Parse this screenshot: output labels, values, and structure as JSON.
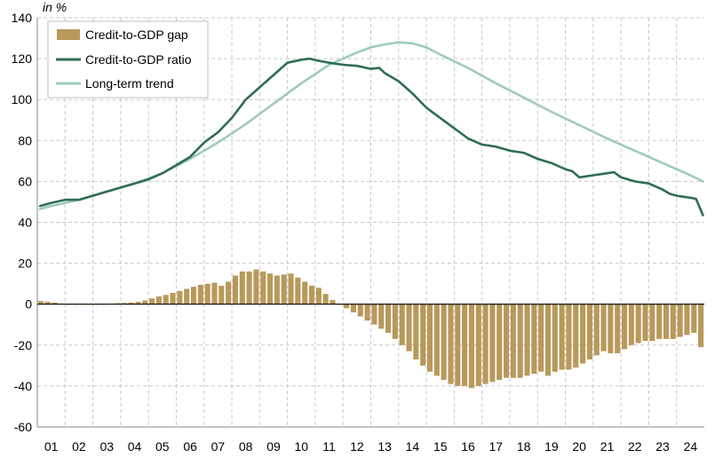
{
  "chart_data": {
    "type": "bar+line",
    "unit_label": "in %",
    "ylim": [
      -60,
      140
    ],
    "y_ticks": [
      140,
      120,
      100,
      80,
      60,
      40,
      20,
      0,
      -20,
      -40,
      -60
    ],
    "x_range": [
      0.5,
      24.5
    ],
    "x_tick_labels": [
      "01",
      "02",
      "03",
      "04",
      "05",
      "06",
      "07",
      "08",
      "09",
      "10",
      "11",
      "12",
      "13",
      "14",
      "15",
      "16",
      "17",
      "18",
      "19",
      "20",
      "21",
      "22",
      "23",
      "24"
    ],
    "grid": true,
    "legend_position": "top-left",
    "colors": {
      "gap": "#b8995a",
      "ratio": "#2e6e50",
      "trend": "#9ccbbb",
      "grid": "#c9c9c9",
      "axis": "#8a8a8a"
    },
    "series": [
      {
        "name": "Credit-to-GDP gap",
        "kind": "bar",
        "x": [
          0.625,
          0.875,
          1.125,
          1.375,
          1.625,
          1.875,
          2.125,
          2.375,
          2.625,
          2.875,
          3.125,
          3.375,
          3.625,
          3.875,
          4.125,
          4.375,
          4.625,
          4.875,
          5.125,
          5.375,
          5.625,
          5.875,
          6.125,
          6.375,
          6.625,
          6.875,
          7.125,
          7.375,
          7.625,
          7.875,
          8.125,
          8.375,
          8.625,
          8.875,
          9.125,
          9.375,
          9.625,
          9.875,
          10.125,
          10.375,
          10.625,
          10.875,
          11.125,
          11.375,
          11.625,
          11.875,
          12.125,
          12.375,
          12.625,
          12.875,
          13.125,
          13.375,
          13.625,
          13.875,
          14.125,
          14.375,
          14.625,
          14.875,
          15.125,
          15.375,
          15.625,
          15.875,
          16.125,
          16.375,
          16.625,
          16.875,
          17.125,
          17.375,
          17.625,
          17.875,
          18.125,
          18.375,
          18.625,
          18.875,
          19.125,
          19.375,
          19.625,
          19.875,
          20.125,
          20.375,
          20.625,
          20.875,
          21.125,
          21.375,
          21.625,
          21.875,
          22.125,
          22.375,
          22.625,
          22.875,
          23.125,
          23.375,
          23.625,
          23.875,
          24.125,
          24.375
        ],
        "values": [
          1.5,
          1.2,
          0.8,
          0.3,
          0,
          -0.2,
          -0.3,
          -0.3,
          -0.1,
          0,
          0.2,
          0.4,
          0.6,
          0.8,
          1.2,
          1.8,
          2.8,
          3.8,
          4.5,
          5.5,
          6.5,
          7.5,
          8.5,
          9.5,
          10,
          10.5,
          9,
          11,
          14,
          16,
          16,
          17,
          16,
          15,
          14,
          14.5,
          15,
          13,
          11,
          9,
          8,
          5,
          2,
          0,
          -2,
          -4,
          -6,
          -8,
          -10,
          -12,
          -14,
          -17,
          -20,
          -23,
          -27,
          -30,
          -33,
          -35,
          -37,
          -39,
          -40,
          -40,
          -41,
          -40,
          -39,
          -38,
          -37,
          -36,
          -36,
          -36,
          -35,
          -34,
          -33,
          -35,
          -33,
          -32,
          -32,
          -31,
          -29,
          -27,
          -25,
          -23,
          -24,
          -24,
          -22,
          -20,
          -19,
          -18,
          -18,
          -17,
          -17,
          -17,
          -16,
          -15,
          -14,
          -21
        ]
      },
      {
        "name": "Credit-to-GDP ratio",
        "kind": "line",
        "x": [
          0.6,
          1.0,
          1.5,
          2.0,
          2.5,
          3.0,
          3.5,
          4.0,
          4.5,
          5.0,
          5.5,
          6.0,
          6.5,
          7.0,
          7.5,
          8.0,
          8.5,
          9.0,
          9.5,
          10.0,
          10.3,
          10.6,
          11.0,
          11.5,
          12.0,
          12.5,
          12.8,
          13.0,
          13.5,
          14.0,
          14.5,
          15.0,
          15.5,
          16.0,
          16.5,
          17.0,
          17.5,
          18.0,
          18.5,
          19.0,
          19.5,
          19.75,
          20.0,
          20.5,
          21.0,
          21.25,
          21.5,
          22.0,
          22.5,
          23.0,
          23.25,
          23.5,
          24.0,
          24.2,
          24.45
        ],
        "values": [
          48,
          49.5,
          51,
          51,
          53,
          55,
          57,
          59,
          61,
          64,
          68,
          72,
          79,
          84,
          91,
          100,
          106,
          112,
          118,
          119.5,
          120,
          119,
          118,
          117,
          116.5,
          115,
          115.5,
          113,
          109,
          103,
          96,
          91,
          86,
          81,
          78,
          77,
          75,
          74,
          71,
          69,
          66,
          65,
          62,
          63,
          64,
          64.5,
          62,
          60,
          59,
          56,
          54,
          53,
          52,
          51.5,
          43.5
        ]
      },
      {
        "name": "Long-term trend",
        "kind": "line",
        "x": [
          0.6,
          1.0,
          2.0,
          3.0,
          4.0,
          5.0,
          6.0,
          7.0,
          8.0,
          9.0,
          10.0,
          11.0,
          12.0,
          12.5,
          13.0,
          13.5,
          14.0,
          14.5,
          15.0,
          16.0,
          17.0,
          18.0,
          19.0,
          20.0,
          21.0,
          22.0,
          23.0,
          24.0,
          24.45
        ],
        "values": [
          46.5,
          48,
          51,
          55,
          59,
          64,
          71,
          79,
          88,
          98,
          108,
          117,
          123,
          125.5,
          127,
          128,
          127.5,
          125.5,
          122,
          115.5,
          108,
          101,
          94,
          87.5,
          81,
          75,
          69,
          63,
          60
        ]
      }
    ]
  }
}
